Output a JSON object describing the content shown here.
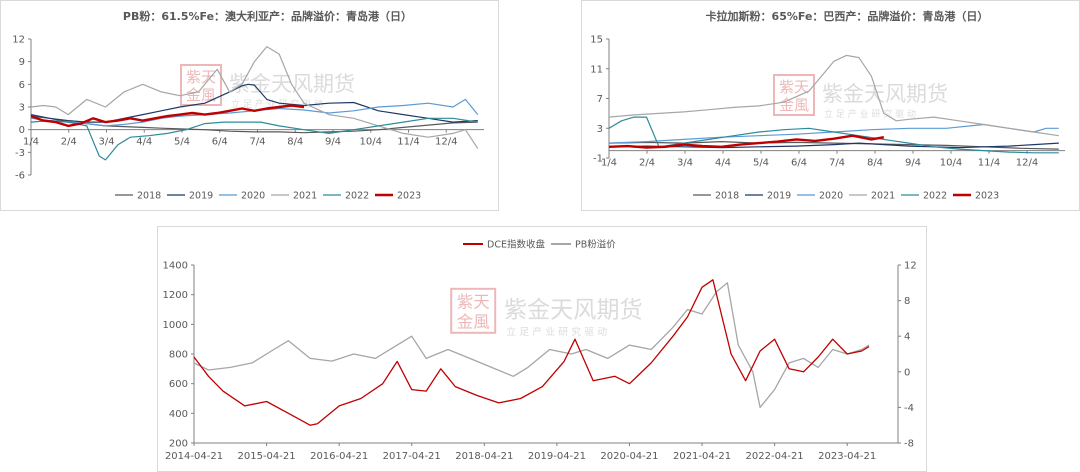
{
  "chart_data": [
    {
      "type": "line",
      "title": "PB粉：61.5%Fe：澳大利亚产：品牌溢价：青岛港（日）",
      "x_ticks": [
        "1/4",
        "2/4",
        "3/4",
        "4/4",
        "5/4",
        "6/4",
        "7/4",
        "8/4",
        "9/4",
        "10/4",
        "11/4",
        "12/4"
      ],
      "ylim": [
        -6,
        12
      ],
      "y_ticks": [
        -6,
        -3,
        0,
        3,
        6,
        9,
        12
      ],
      "series": [
        {
          "name": "2018",
          "color": "#595959",
          "width": 1.2,
          "x": [
            0,
            15,
            30,
            45,
            60,
            75,
            90,
            105,
            120,
            140,
            160,
            180,
            200,
            220,
            240,
            260,
            280,
            300,
            320,
            340,
            360
          ],
          "y": [
            1.8,
            1.5,
            1.0,
            0.8,
            0.5,
            0.4,
            0.3,
            0.2,
            0.1,
            0.0,
            -0.2,
            -0.3,
            -0.3,
            -0.4,
            -0.3,
            -0.2,
            0.0,
            0.3,
            0.6,
            0.9,
            1.0
          ]
        },
        {
          "name": "2019",
          "color": "#1f3864",
          "width": 1.2,
          "x": [
            0,
            15,
            30,
            45,
            60,
            75,
            90,
            105,
            120,
            140,
            160,
            170,
            175,
            180,
            190,
            200,
            220,
            240,
            260,
            280,
            300,
            320,
            340,
            360
          ],
          "y": [
            2.0,
            1.5,
            1.2,
            1.0,
            1.0,
            1.5,
            2.0,
            2.5,
            3.0,
            3.5,
            5.0,
            5.8,
            6.0,
            5.9,
            4.0,
            3.5,
            3.2,
            3.5,
            3.6,
            2.5,
            2.0,
            1.5,
            1.0,
            1.2
          ]
        },
        {
          "name": "2020",
          "color": "#5b9bd5",
          "width": 1.2,
          "x": [
            0,
            15,
            30,
            45,
            60,
            75,
            90,
            105,
            120,
            140,
            160,
            180,
            200,
            220,
            240,
            260,
            280,
            300,
            320,
            340,
            350,
            360
          ],
          "y": [
            1.5,
            1.2,
            1.0,
            0.8,
            0.5,
            0.7,
            1.0,
            1.5,
            1.8,
            2.0,
            2.2,
            2.5,
            2.8,
            2.6,
            2.2,
            2.5,
            3.0,
            3.2,
            3.5,
            3.0,
            4.0,
            2.0
          ]
        },
        {
          "name": "2021",
          "color": "#a6a6a6",
          "width": 1.2,
          "x": [
            0,
            10,
            20,
            30,
            45,
            60,
            75,
            90,
            105,
            120,
            135,
            145,
            150,
            160,
            170,
            180,
            190,
            200,
            210,
            220,
            240,
            260,
            280,
            300,
            320,
            340,
            350,
            360
          ],
          "y": [
            3.0,
            3.2,
            3.0,
            2.0,
            4.0,
            3.0,
            5.0,
            6.0,
            5.0,
            4.5,
            5.0,
            7.0,
            8.0,
            5.0,
            6.0,
            9.0,
            11.0,
            10.0,
            6.0,
            3.5,
            2.0,
            1.5,
            0.5,
            -0.5,
            -1.0,
            -0.5,
            0.0,
            -2.5
          ]
        },
        {
          "name": "2022",
          "color": "#2e8b99",
          "width": 1.2,
          "x": [
            0,
            15,
            30,
            45,
            55,
            60,
            70,
            80,
            95,
            110,
            125,
            140,
            155,
            170,
            185,
            200,
            220,
            240,
            260,
            280,
            300,
            320,
            340,
            360
          ],
          "y": [
            1.0,
            1.2,
            1.0,
            0.5,
            -3.5,
            -4.0,
            -2.0,
            -1.0,
            -0.8,
            -0.5,
            0.0,
            0.8,
            1.0,
            1.0,
            1.0,
            0.5,
            0.0,
            -0.5,
            0.0,
            0.5,
            1.0,
            1.5,
            1.5,
            1.0
          ]
        },
        {
          "name": "2023",
          "color": "#c00000",
          "width": 2.4,
          "x": [
            0,
            10,
            20,
            30,
            40,
            50,
            60,
            70,
            80,
            90,
            100,
            110,
            120,
            130,
            140,
            150,
            160,
            170,
            180,
            190,
            200,
            210,
            220
          ],
          "y": [
            1.8,
            1.2,
            1.0,
            0.5,
            0.8,
            1.5,
            1.0,
            1.2,
            1.5,
            1.2,
            1.5,
            1.8,
            2.0,
            2.2,
            2.0,
            2.2,
            2.5,
            2.8,
            2.5,
            2.8,
            3.0,
            3.2,
            3.0
          ]
        }
      ]
    },
    {
      "type": "line",
      "title": "卡拉加斯粉：65%Fe：巴西产：品牌溢价：青岛港（日）",
      "x_ticks": [
        "1/4",
        "2/4",
        "3/4",
        "4/4",
        "5/4",
        "6/4",
        "7/4",
        "8/4",
        "9/4",
        "10/4",
        "11/4",
        "12/4"
      ],
      "ylim": [
        -1,
        15
      ],
      "y_ticks": [
        -1,
        3,
        7,
        11,
        15
      ],
      "series": [
        {
          "name": "2018",
          "color": "#595959",
          "width": 1.2,
          "x": [
            0,
            30,
            60,
            90,
            120,
            150,
            180,
            210,
            240,
            270,
            300,
            330,
            360
          ],
          "y": [
            1.0,
            1.1,
            1.0,
            1.2,
            1.0,
            1.1,
            1.0,
            0.9,
            0.8,
            0.7,
            0.5,
            0.3,
            0.2
          ]
        },
        {
          "name": "2019",
          "color": "#1f3864",
          "width": 1.2,
          "x": [
            0,
            30,
            60,
            90,
            120,
            150,
            180,
            200,
            220,
            240,
            260,
            280,
            300,
            320,
            340,
            360
          ],
          "y": [
            0.5,
            0.6,
            0.5,
            0.4,
            0.5,
            0.6,
            0.8,
            1.0,
            0.8,
            0.6,
            0.5,
            0.4,
            0.5,
            0.6,
            0.8,
            1.0
          ]
        },
        {
          "name": "2020",
          "color": "#5b9bd5",
          "width": 1.2,
          "x": [
            0,
            30,
            60,
            90,
            120,
            150,
            180,
            210,
            240,
            270,
            300,
            320,
            340,
            350,
            360
          ],
          "y": [
            1.0,
            1.2,
            1.5,
            1.8,
            2.0,
            2.2,
            2.5,
            2.8,
            3.0,
            3.0,
            3.5,
            3.0,
            2.5,
            3.0,
            3.0
          ]
        },
        {
          "name": "2021",
          "color": "#a6a6a6",
          "width": 1.2,
          "x": [
            0,
            20,
            40,
            60,
            80,
            100,
            120,
            140,
            160,
            170,
            180,
            190,
            200,
            210,
            220,
            230,
            240,
            260,
            280,
            300,
            320,
            340,
            360
          ],
          "y": [
            4.5,
            4.8,
            5.0,
            5.2,
            5.5,
            5.8,
            6.0,
            6.5,
            8.0,
            10.0,
            12.0,
            12.8,
            12.5,
            10.0,
            5.0,
            4.0,
            4.2,
            4.5,
            4.0,
            3.5,
            3.0,
            2.5,
            2.0
          ]
        },
        {
          "name": "2022",
          "color": "#2e8b99",
          "width": 1.2,
          "x": [
            0,
            10,
            20,
            30,
            40,
            60,
            80,
            100,
            120,
            140,
            160,
            180,
            200,
            220,
            240,
            260,
            280,
            300,
            320,
            340,
            360
          ],
          "y": [
            3.0,
            4.0,
            4.5,
            4.5,
            0.5,
            1.0,
            1.5,
            2.0,
            2.5,
            2.8,
            3.0,
            2.5,
            2.0,
            1.5,
            1.0,
            0.5,
            0.2,
            0.0,
            -0.2,
            -0.3,
            -0.3
          ]
        },
        {
          "name": "2023",
          "color": "#c00000",
          "width": 2.4,
          "x": [
            0,
            15,
            30,
            45,
            60,
            75,
            90,
            105,
            120,
            135,
            150,
            165,
            180,
            195,
            210,
            220
          ],
          "y": [
            0.5,
            0.6,
            0.4,
            0.5,
            0.8,
            0.6,
            0.5,
            0.8,
            1.0,
            1.2,
            1.5,
            1.3,
            1.6,
            2.0,
            1.5,
            1.8
          ]
        }
      ]
    },
    {
      "type": "line",
      "title": "",
      "x_ticks": [
        "2014-04-21",
        "2015-04-21",
        "2016-04-21",
        "2017-04-21",
        "2018-04-21",
        "2019-04-21",
        "2020-04-21",
        "2021-04-21",
        "2022-04-21",
        "2023-04-21"
      ],
      "ylim": [
        200,
        1400
      ],
      "y_ticks": [
        200,
        400,
        600,
        800,
        1000,
        1200,
        1400
      ],
      "y2lim": [
        -8,
        12
      ],
      "y2_ticks": [
        -8,
        -4,
        0,
        4,
        8,
        12
      ],
      "series": [
        {
          "name": "DCE指数收盘",
          "axis": "left",
          "color": "#c00000",
          "width": 1.3,
          "x": [
            2014.3,
            2014.5,
            2014.7,
            2015.0,
            2015.3,
            2015.6,
            2015.9,
            2016.0,
            2016.3,
            2016.6,
            2016.9,
            2017.1,
            2017.3,
            2017.5,
            2017.7,
            2017.9,
            2018.2,
            2018.5,
            2018.8,
            2019.1,
            2019.4,
            2019.55,
            2019.8,
            2020.1,
            2020.3,
            2020.6,
            2020.9,
            2021.1,
            2021.3,
            2021.45,
            2021.55,
            2021.7,
            2021.9,
            2022.1,
            2022.3,
            2022.5,
            2022.7,
            2022.9,
            2023.1,
            2023.3,
            2023.5,
            2023.6
          ],
          "y": [
            780,
            650,
            550,
            450,
            480,
            400,
            320,
            330,
            450,
            500,
            600,
            750,
            560,
            550,
            700,
            580,
            520,
            470,
            500,
            580,
            750,
            900,
            620,
            650,
            600,
            740,
            920,
            1050,
            1250,
            1300,
            1100,
            800,
            620,
            820,
            900,
            700,
            680,
            780,
            900,
            800,
            820,
            850
          ]
        },
        {
          "name": "PB粉溢价",
          "axis": "right",
          "color": "#a6a6a6",
          "width": 1.3,
          "x": [
            2014.3,
            2014.5,
            2014.8,
            2015.1,
            2015.4,
            2015.6,
            2015.9,
            2016.2,
            2016.5,
            2016.8,
            2017.1,
            2017.3,
            2017.5,
            2017.8,
            2018.1,
            2018.4,
            2018.7,
            2018.9,
            2019.2,
            2019.5,
            2019.7,
            2020.0,
            2020.3,
            2020.6,
            2020.9,
            2021.1,
            2021.3,
            2021.5,
            2021.65,
            2021.8,
            2022.0,
            2022.1,
            2022.3,
            2022.5,
            2022.7,
            2022.9,
            2023.1,
            2023.3,
            2023.5,
            2023.6
          ],
          "y": [
            1.0,
            0.2,
            0.5,
            1.0,
            2.5,
            3.5,
            1.5,
            1.2,
            2.0,
            1.5,
            3.0,
            4.0,
            1.5,
            2.5,
            1.5,
            0.5,
            -0.5,
            0.5,
            2.5,
            2.0,
            2.5,
            1.5,
            3.0,
            2.5,
            5.0,
            7.0,
            6.5,
            9.0,
            10.0,
            3.0,
            0.0,
            -4.0,
            -2.0,
            1.0,
            1.5,
            0.5,
            2.5,
            2.0,
            2.5,
            3.0
          ]
        }
      ]
    }
  ],
  "watermark": {
    "brand": "紫金天风期货",
    "slogan": "立 足 产 业  研 究 驱 动",
    "seal": [
      "紫天",
      "金風"
    ]
  }
}
